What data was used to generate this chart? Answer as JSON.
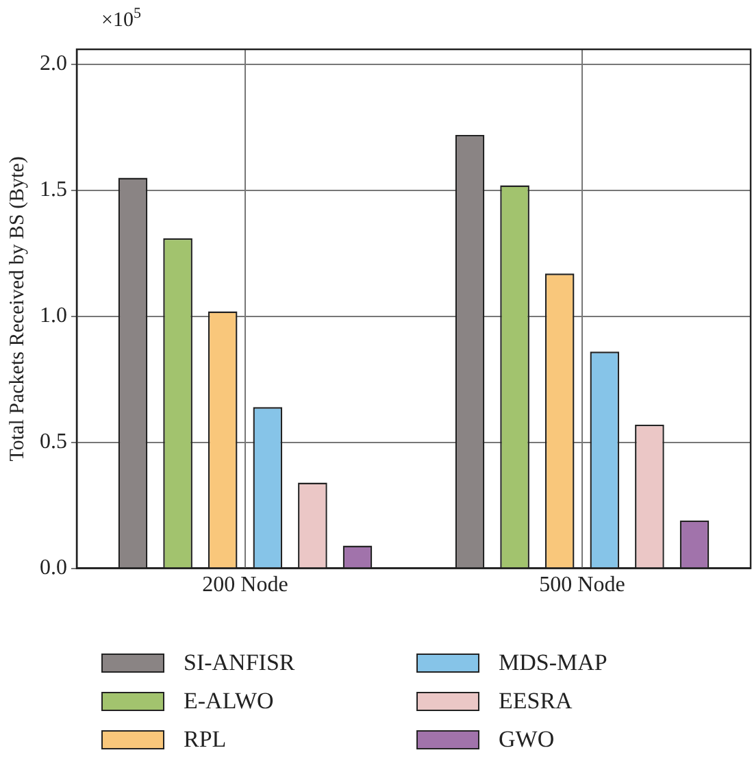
{
  "chart_data": {
    "type": "bar",
    "ylabel": "Total Packets Received by BS (Byte)",
    "annotations": [
      "×10$^{5}$"
    ],
    "categories": [
      "200 Node",
      "500 Node"
    ],
    "series": [
      {
        "name": "SI-ANFISR",
        "color": "#8a8484",
        "values": [
          1.55,
          1.72
        ]
      },
      {
        "name": "E-ALWO",
        "color": "#a2c36e",
        "values": [
          1.31,
          1.52
        ]
      },
      {
        "name": "RPL",
        "color": "#f9c77b",
        "values": [
          1.02,
          1.17
        ]
      },
      {
        "name": "MDS-MAP",
        "color": "#86c4e8",
        "values": [
          0.64,
          0.86
        ]
      },
      {
        "name": "EESRA",
        "color": "#ebc7c6",
        "values": [
          0.34,
          0.57
        ]
      },
      {
        "name": "GWO",
        "color": "#a173ab",
        "values": [
          0.09,
          0.19
        ]
      }
    ],
    "ylim": [
      0,
      2.06
    ],
    "yticks": [
      {
        "value": 0,
        "label": "0.0"
      },
      {
        "value": 0.5,
        "label": "0.5"
      },
      {
        "value": 1,
        "label": "1.0"
      },
      {
        "value": 1.5,
        "label": "1.5"
      },
      {
        "value": 2,
        "label": "2.0"
      }
    ],
    "grid": true,
    "legend": "bottom"
  }
}
